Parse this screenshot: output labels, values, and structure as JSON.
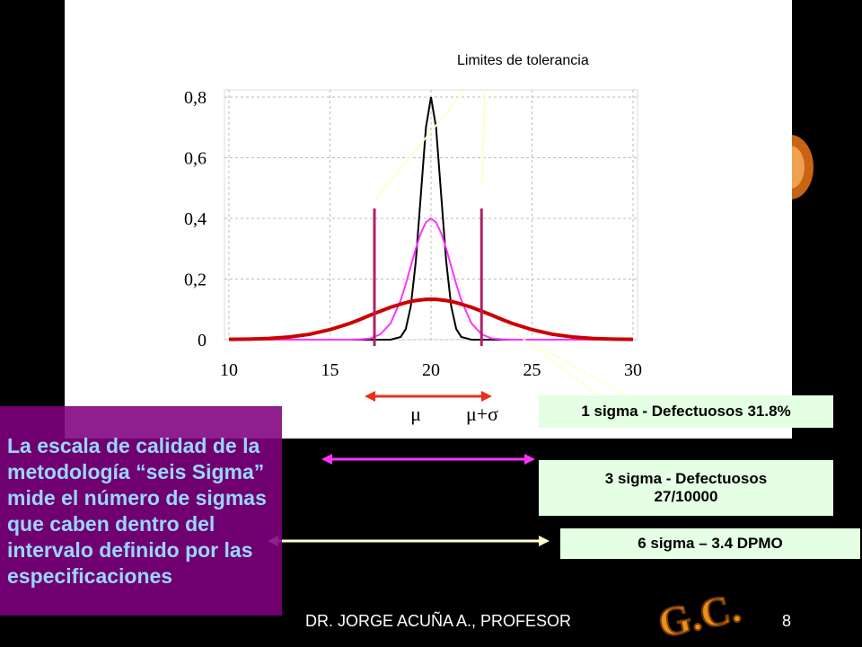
{
  "chart_data": {
    "type": "line",
    "x": [
      10,
      11,
      12,
      13,
      14,
      15,
      16,
      16.5,
      17,
      17.5,
      18,
      18.5,
      18.75,
      19,
      19.25,
      19.5,
      19.75,
      20,
      20.25,
      20.5,
      20.75,
      21,
      21.25,
      21.5,
      22,
      22.5,
      23,
      23.5,
      24,
      25,
      26,
      27,
      28,
      29,
      30
    ],
    "series": [
      {
        "color": "#000000",
        "values": [
          0,
          0,
          0,
          0,
          0,
          0,
          0,
          0,
          0,
          0,
          0,
          0.009,
          0.035,
          0.11,
          0.26,
          0.48,
          0.7,
          0.8,
          0.7,
          0.48,
          0.26,
          0.11,
          0.035,
          0.009,
          0,
          0,
          0,
          0,
          0,
          0,
          0,
          0,
          0,
          0,
          0
        ]
      },
      {
        "color": "#ff33ff",
        "values": [
          0,
          0,
          0,
          0,
          0,
          0,
          0,
          0.001,
          0.004,
          0.018,
          0.054,
          0.13,
          0.183,
          0.242,
          0.301,
          0.352,
          0.387,
          0.4,
          0.387,
          0.352,
          0.301,
          0.242,
          0.183,
          0.13,
          0.054,
          0.018,
          0.004,
          0.001,
          0,
          0,
          0,
          0,
          0,
          0,
          0
        ]
      },
      {
        "color": "#cc0000",
        "values": [
          0.001,
          0.002,
          0.004,
          0.009,
          0.018,
          0.033,
          0.054,
          0.067,
          0.081,
          0.094,
          0.107,
          0.117,
          0.122,
          0.126,
          0.129,
          0.131,
          0.133,
          0.133,
          0.133,
          0.131,
          0.129,
          0.126,
          0.122,
          0.117,
          0.107,
          0.094,
          0.081,
          0.067,
          0.054,
          0.033,
          0.018,
          0.009,
          0.004,
          0.002,
          0.001
        ]
      }
    ],
    "tolerance_limits": [
      17.2,
      22.5
    ],
    "xlim": [
      10,
      30
    ],
    "xticks": [
      10,
      15,
      20,
      25,
      30
    ],
    "ylim": [
      0,
      0.8
    ],
    "yticks": [
      0,
      {
        "value": 0.2,
        "label": "0,2"
      },
      {
        "value": 0.4,
        "label": "0,4"
      },
      {
        "value": 0.6,
        "label": "0,6"
      },
      {
        "value": 0.8,
        "label": "0,8"
      }
    ],
    "grid": true,
    "annotations": {
      "tolerance": "Limites de tolerancia",
      "mu": "μ",
      "mu_sigma": "μ+σ"
    }
  },
  "boxes": {
    "one_sigma": "1 sigma - Defectuosos 31.8%",
    "three_sigma": "3 sigma - Defectuosos 27/10000",
    "six_sigma": "6 sigma – 3.4 DPMO",
    "description": "La escala de calidad de la metodología “seis Sigma” mide el número de sigmas que caben dentro del intervalo definido por las especificaciones"
  },
  "footer": {
    "author": "DR.  JORGE ACUÑA A., PROFESOR",
    "page": "8",
    "logo": "G.C."
  }
}
